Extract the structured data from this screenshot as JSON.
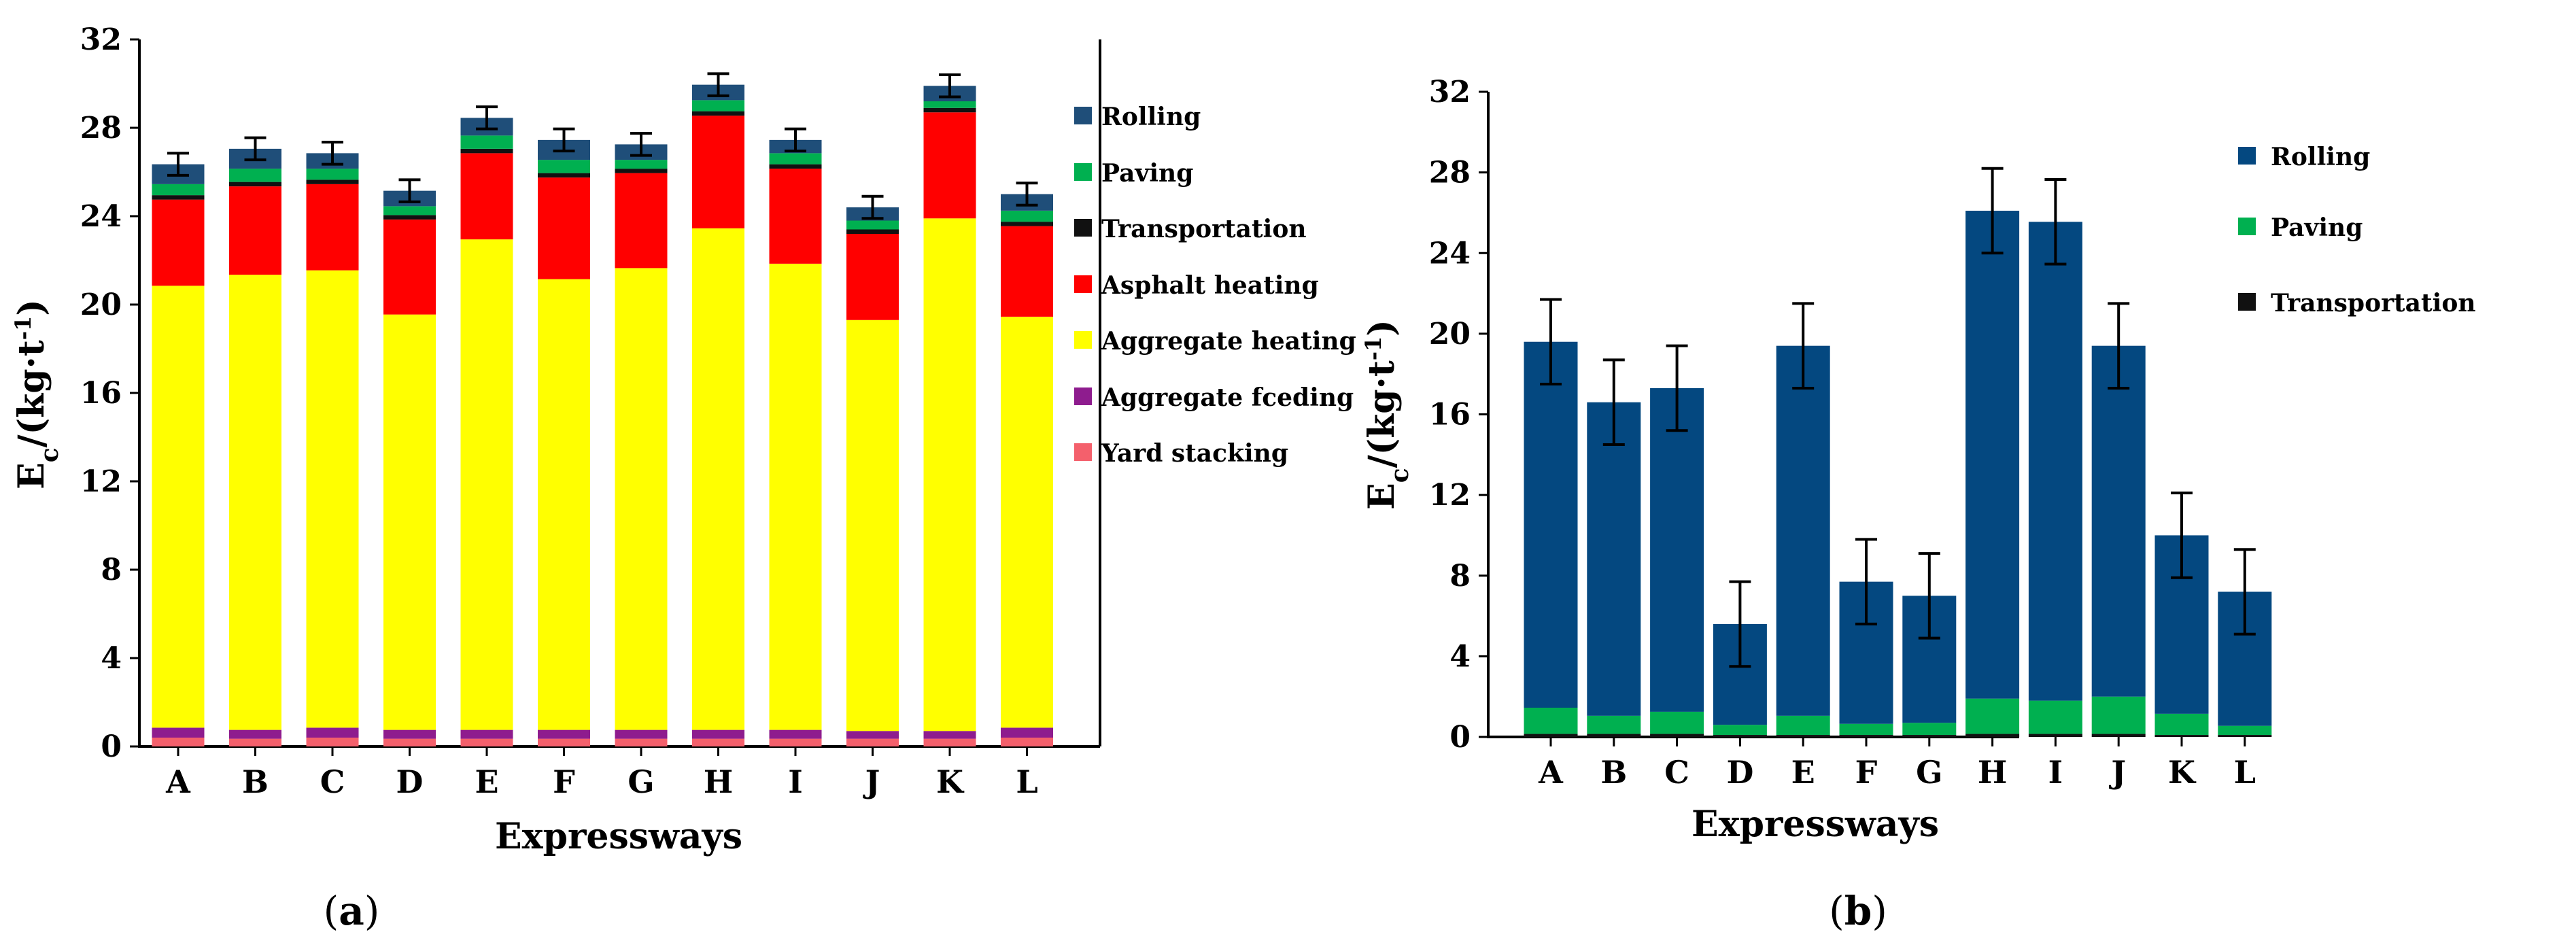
{
  "chart_data": [
    {
      "type": "bar",
      "stacked": true,
      "panel_label": {
        "open": "(",
        "letter": "a",
        "close": ")"
      },
      "xlabel": "Expressways",
      "ylabel": "E",
      "ylabel_sub": "c",
      "ylabel_unit": "/(kg·t",
      "ylabel_sup": "-1",
      "ylabel_close": ")",
      "ylim": [
        0,
        32
      ],
      "yticks": [
        0,
        4,
        8,
        12,
        16,
        20,
        24,
        28,
        32
      ],
      "tick_labels": [
        "0",
        "4",
        "8",
        "12",
        "16",
        "20",
        "24",
        "28",
        "32"
      ],
      "grid": false,
      "legend_position": "right",
      "categories": [
        "A",
        "B",
        "C",
        "D",
        "E",
        "F",
        "G",
        "H",
        "I",
        "J",
        "K",
        "L"
      ],
      "series": [
        {
          "name": "Yard stacking",
          "color": "#f4606c",
          "values": [
            0.4,
            0.35,
            0.4,
            0.35,
            0.35,
            0.35,
            0.35,
            0.35,
            0.35,
            0.35,
            0.35,
            0.4
          ]
        },
        {
          "name": "Aggregate fceding",
          "color": "#8e1c8e",
          "values": [
            0.45,
            0.4,
            0.45,
            0.4,
            0.4,
            0.4,
            0.4,
            0.4,
            0.4,
            0.35,
            0.35,
            0.45
          ]
        },
        {
          "name": "Aggregate heating",
          "color": "#ffff00",
          "values": [
            20.0,
            20.6,
            20.7,
            18.8,
            22.2,
            20.4,
            20.9,
            22.7,
            21.1,
            18.6,
            23.2,
            18.6
          ]
        },
        {
          "name": "Asphalt heating",
          "color": "#ff0000",
          "values": [
            3.9,
            4.0,
            3.9,
            4.3,
            3.9,
            4.6,
            4.3,
            5.1,
            4.3,
            3.9,
            4.8,
            4.1
          ]
        },
        {
          "name": "Transportation",
          "color": "#111111",
          "values": [
            0.2,
            0.2,
            0.2,
            0.2,
            0.2,
            0.2,
            0.2,
            0.2,
            0.2,
            0.2,
            0.2,
            0.2
          ]
        },
        {
          "name": "Paving",
          "color": "#00b050",
          "values": [
            0.5,
            0.6,
            0.5,
            0.4,
            0.6,
            0.6,
            0.4,
            0.5,
            0.5,
            0.4,
            0.3,
            0.5
          ]
        },
        {
          "name": "Rolling",
          "color": "#1f4e79",
          "values": [
            0.9,
            0.9,
            0.7,
            0.7,
            0.8,
            0.9,
            0.7,
            0.7,
            0.6,
            0.6,
            0.7,
            0.75
          ]
        }
      ],
      "error_bar": [
        0.5,
        0.5,
        0.5,
        0.5,
        0.5,
        0.5,
        0.5,
        0.5,
        0.5,
        0.5,
        0.5,
        0.5
      ],
      "legend_order": [
        "Rolling",
        "Paving",
        "Transportation",
        "Asphalt heating",
        "Aggregate heating",
        "Aggregate fceding",
        "Yard stacking"
      ]
    },
    {
      "type": "bar",
      "stacked": true,
      "panel_label": {
        "open": "(",
        "letter": "b",
        "close": ")"
      },
      "xlabel": "Expressways",
      "ylabel": "E",
      "ylabel_sub": "c",
      "ylabel_unit": "/(kg·t",
      "ylabel_sup": "-1",
      "ylabel_close": ")",
      "ylim": [
        0,
        32
      ],
      "yticks": [
        0,
        4,
        8,
        12,
        16,
        20,
        24,
        28,
        32
      ],
      "tick_labels": [
        "0",
        "4",
        "8",
        "12",
        "16",
        "20",
        "24",
        "28",
        "32"
      ],
      "grid": false,
      "legend_position": "right",
      "categories": [
        "A",
        "B",
        "C",
        "D",
        "E",
        "F",
        "G",
        "H",
        "I",
        "J",
        "K",
        "L"
      ],
      "series": [
        {
          "name": "Transportation",
          "color": "#111111",
          "values": [
            0.15,
            0.15,
            0.15,
            0.1,
            0.1,
            0.1,
            0.1,
            0.15,
            0.15,
            0.15,
            0.1,
            0.1
          ]
        },
        {
          "name": "Paving",
          "color": "#00b050",
          "values": [
            1.3,
            0.9,
            1.1,
            0.5,
            0.95,
            0.55,
            0.6,
            1.75,
            1.65,
            1.85,
            1.05,
            0.45
          ]
        },
        {
          "name": "Rolling",
          "color": "#044880",
          "values": [
            18.15,
            15.55,
            16.05,
            5.0,
            18.35,
            7.05,
            6.3,
            24.2,
            23.75,
            17.4,
            8.85,
            6.65
          ]
        }
      ],
      "error_bar": [
        2.1,
        2.1,
        2.1,
        2.1,
        2.1,
        2.1,
        2.1,
        2.1,
        2.1,
        2.1,
        2.1,
        2.1
      ],
      "legend_order": [
        "Rolling",
        "Paving",
        "Transportation"
      ]
    }
  ]
}
